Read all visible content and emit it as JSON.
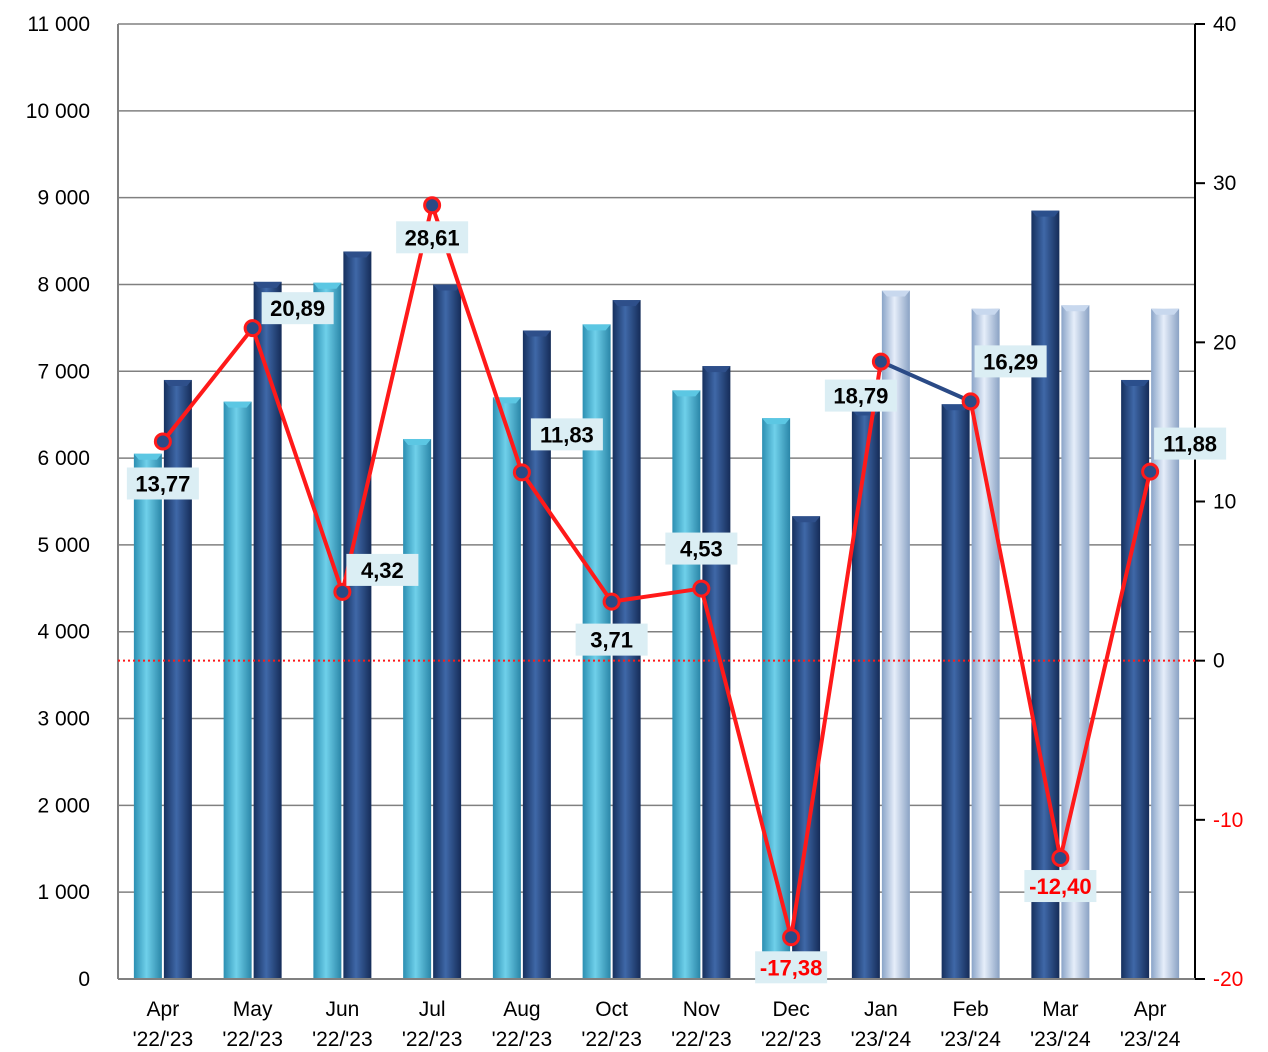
{
  "chart_data": {
    "type": "bar",
    "categories": [
      [
        "Apr",
        "'22/'23"
      ],
      [
        "May",
        "'22/'23"
      ],
      [
        "Jun",
        "'22/'23"
      ],
      [
        "Jul",
        "'22/'23"
      ],
      [
        "Aug",
        "'22/'23"
      ],
      [
        "Oct",
        "'22/'23"
      ],
      [
        "Nov",
        "'22/'23"
      ],
      [
        "Dec",
        "'22/'23"
      ],
      [
        "Jan",
        "'23/'24"
      ],
      [
        "Feb",
        "'23/'24"
      ],
      [
        "Mar",
        "'23/'24"
      ],
      [
        "Apr",
        "'23/'24"
      ]
    ],
    "series": [
      {
        "type": "bar",
        "axis": "left",
        "values": [
          6050,
          6650,
          8020,
          6220,
          6700,
          7540,
          6780,
          6460,
          6560,
          6620,
          8850,
          6900
        ]
      },
      {
        "type": "bar",
        "axis": "left",
        "values": [
          6900,
          8030,
          8380,
          8000,
          7470,
          7820,
          7060,
          5330,
          7930,
          7720,
          7760,
          7720
        ]
      },
      {
        "type": "line",
        "axis": "right",
        "values": [
          13.77,
          20.89,
          4.32,
          28.61,
          11.83,
          3.71,
          4.53,
          -17.38,
          18.79,
          16.29,
          -12.4,
          11.88
        ]
      }
    ],
    "data_labels": [
      "13,77",
      "20,89",
      "4,32",
      "28,61",
      "11,83",
      "3,71",
      "4,53",
      "-17,38",
      "18,79",
      "16,29",
      "-12,40",
      "11,88"
    ],
    "y_left": {
      "min": 0,
      "max": 11000,
      "ticks": [
        0,
        1000,
        2000,
        3000,
        4000,
        5000,
        6000,
        7000,
        8000,
        9000,
        10000,
        11000
      ],
      "tick_labels": [
        "0",
        "1 000",
        "2 000",
        "3 000",
        "4 000",
        "5 000",
        "6 000",
        "7 000",
        "8 000",
        "9 000",
        "10 000",
        "11 000"
      ]
    },
    "y_right": {
      "min": -20,
      "max": 40,
      "ticks": [
        -20,
        -10,
        0,
        10,
        20,
        30,
        40
      ],
      "tick_labels": [
        "-20",
        "-10",
        "0",
        "10",
        "20",
        "30",
        "40"
      ]
    },
    "grid": true,
    "zero_line": "dotted red at 0 on right axis",
    "colors": {
      "bar_light": "#3aa6c8",
      "bar_dark": "#1e3f78",
      "bar_pale": "#a9bfde",
      "line": "#ff1a1a",
      "line_segment_jan_feb": "#2a4a86",
      "marker_fill": "#2a4a86",
      "label_bg": "#dbeef4",
      "label_text": "#000000",
      "negative_text": "#ff0000",
      "grid": "#808080"
    }
  }
}
